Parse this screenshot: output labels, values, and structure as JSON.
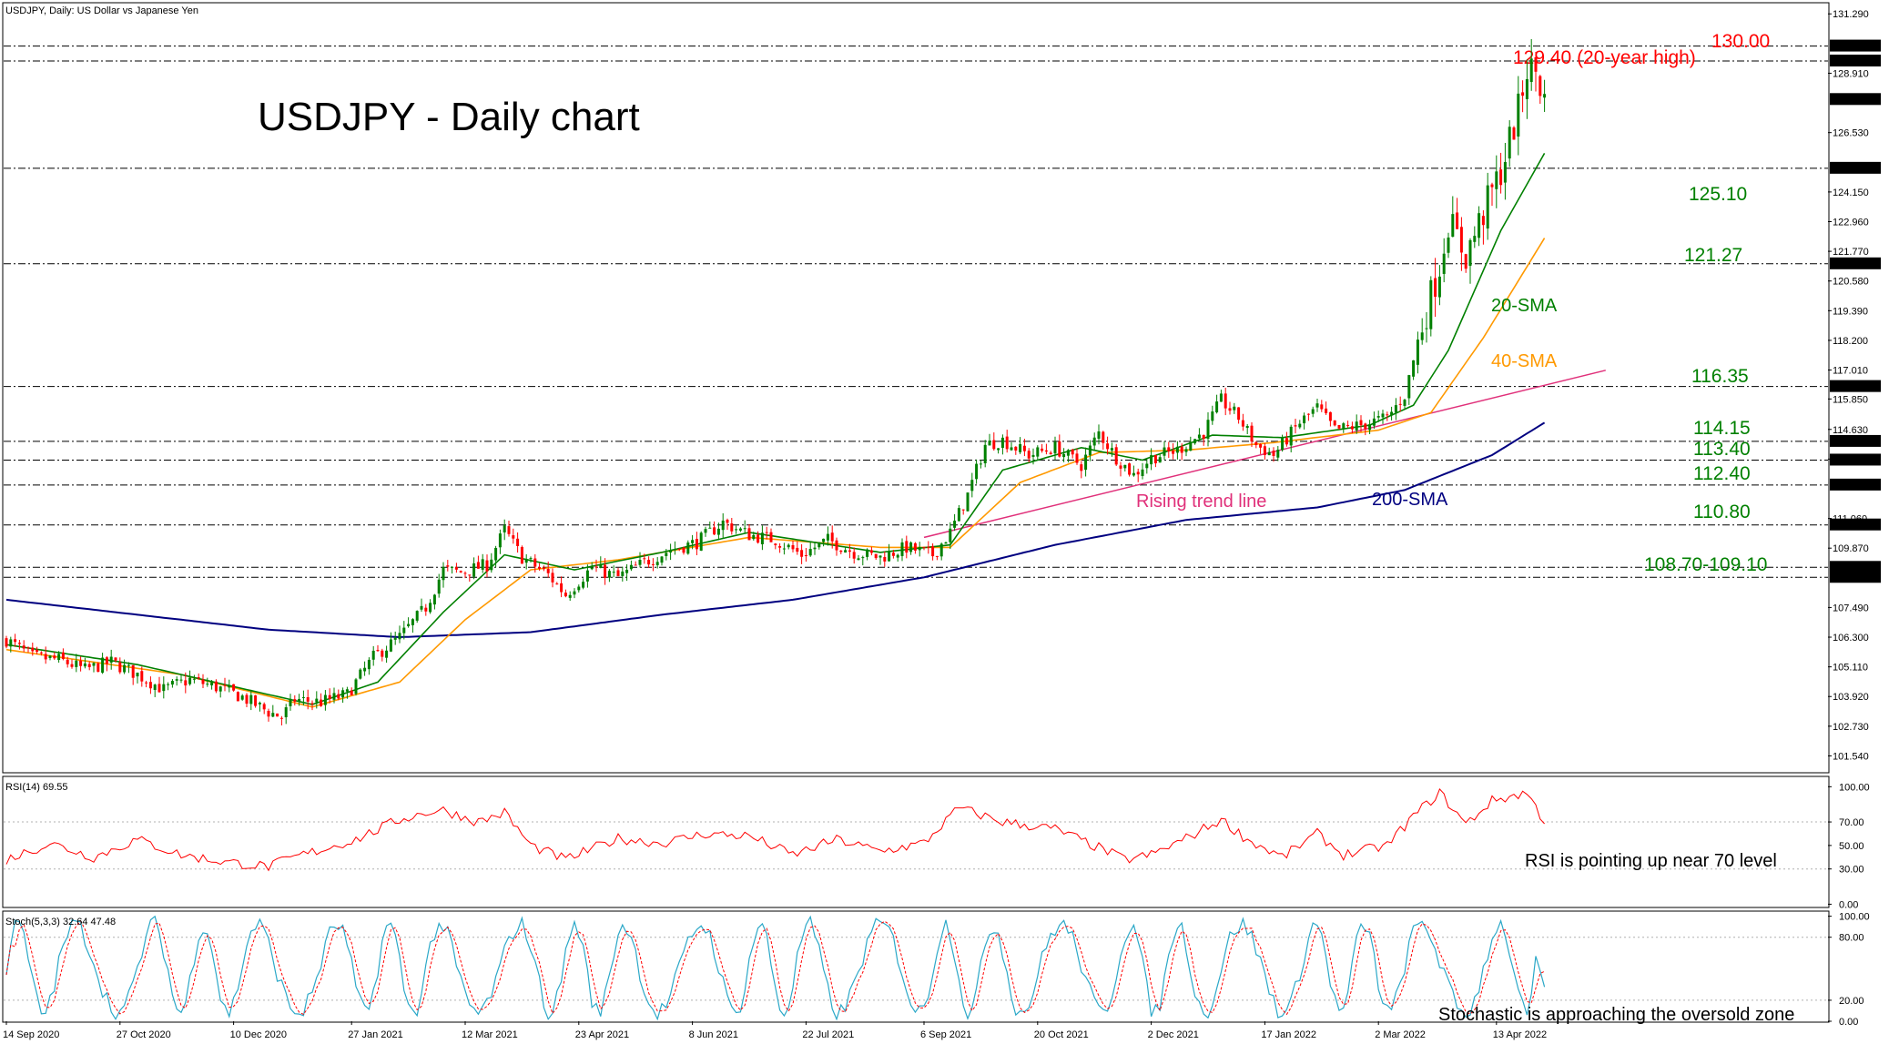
{
  "header": {
    "symbol_info": "USDJPY, Daily:  US Dollar vs Japanese Yen",
    "title": "USDJPY - Daily chart"
  },
  "colors": {
    "bull": "#008000",
    "bear": "#ff0000",
    "sma20": "#008000",
    "sma40": "#ff9900",
    "sma200": "#000080",
    "trend": "#e0307a",
    "rsi": "#ff0000",
    "stoch_main": "#2ba8c8",
    "stoch_signal": "#ff0000",
    "level_green": "#008000",
    "level_red": "#ff0000"
  },
  "chart_data": [
    {
      "type": "candlestick",
      "panel": "price",
      "ylim": [
        100.9,
        131.7
      ],
      "x_tick_labels": [
        "14 Sep 2020",
        "27 Oct 2020",
        "10 Dec 2020",
        "27 Jan 2021",
        "12 Mar 2021",
        "23 Apr 2021",
        "8 Jun 2021",
        "22 Jul 2021",
        "6 Sep 2021",
        "20 Oct 2021",
        "2 Dec 2021",
        "17 Jan 2022",
        "2 Mar 2022",
        "13 Apr 2022"
      ],
      "y_tick_labels": [
        "131.290",
        "128.910",
        "126.530",
        "124.150",
        "122.960",
        "121.770",
        "120.580",
        "119.390",
        "118.200",
        "117.010",
        "115.850",
        "114.630",
        "113.440",
        "111.060",
        "109.870",
        "107.490",
        "106.300",
        "105.110",
        "103.920",
        "102.730",
        "101.540"
      ],
      "key_levels": [
        {
          "value": 130.0,
          "label": "130.00",
          "box": "130.000",
          "color": "red"
        },
        {
          "value": 129.4,
          "label": "129.40 (20-year high)",
          "box": "129.400",
          "color": "red"
        },
        {
          "value": 125.1,
          "label": "125.10",
          "box": "125.100",
          "color": "green"
        },
        {
          "value": 121.27,
          "label": "121.27",
          "box": "121.270",
          "color": "green"
        },
        {
          "value": 116.35,
          "label": "116.35",
          "box": "116.350",
          "color": "green"
        },
        {
          "value": 114.15,
          "label": "114.15",
          "box": "114.150",
          "color": "green"
        },
        {
          "value": 113.4,
          "label": "113.40",
          "box": "113.400",
          "color": "green"
        },
        {
          "value": 112.4,
          "label": "112.40",
          "box": "112.400",
          "color": "green"
        },
        {
          "value": 110.8,
          "label": "110.80",
          "box": "110.800",
          "color": "green"
        },
        {
          "value": 109.1,
          "label": "108.70-109.10",
          "box": "109.100",
          "color": "green"
        },
        {
          "value": 108.7,
          "label": "",
          "box": "108.700",
          "color": "green"
        }
      ],
      "current_price": {
        "value": 127.857,
        "box": "127.857"
      },
      "anchors": [
        [
          0,
          106.2
        ],
        [
          6,
          105.5
        ],
        [
          12,
          105.4
        ],
        [
          18,
          105.0
        ],
        [
          24,
          105.3
        ],
        [
          30,
          104.8
        ],
        [
          36,
          104.2
        ],
        [
          42,
          104.6
        ],
        [
          48,
          104.3
        ],
        [
          54,
          103.9
        ],
        [
          60,
          103.3
        ],
        [
          63,
          103.1
        ],
        [
          66,
          103.8
        ],
        [
          72,
          103.7
        ],
        [
          78,
          104.0
        ],
        [
          84,
          105.5
        ],
        [
          90,
          106.3
        ],
        [
          96,
          107.5
        ],
        [
          100,
          109.0
        ],
        [
          104,
          108.9
        ],
        [
          110,
          109.2
        ],
        [
          114,
          110.6
        ],
        [
          118,
          109.5
        ],
        [
          124,
          108.8
        ],
        [
          128,
          108.0
        ],
        [
          134,
          109.1
        ],
        [
          140,
          108.7
        ],
        [
          146,
          109.3
        ],
        [
          152,
          109.8
        ],
        [
          158,
          110.1
        ],
        [
          164,
          110.9
        ],
        [
          170,
          110.4
        ],
        [
          176,
          110.2
        ],
        [
          182,
          109.6
        ],
        [
          188,
          110.2
        ],
        [
          194,
          109.7
        ],
        [
          200,
          109.5
        ],
        [
          206,
          109.9
        ],
        [
          212,
          109.6
        ],
        [
          216,
          110.5
        ],
        [
          220,
          112.0
        ],
        [
          224,
          114.0
        ],
        [
          228,
          114.2
        ],
        [
          234,
          113.6
        ],
        [
          240,
          113.9
        ],
        [
          246,
          113.2
        ],
        [
          250,
          114.5
        ],
        [
          254,
          113.5
        ],
        [
          258,
          112.8
        ],
        [
          262,
          113.5
        ],
        [
          268,
          113.8
        ],
        [
          274,
          114.5
        ],
        [
          278,
          115.8
        ],
        [
          282,
          115.1
        ],
        [
          286,
          114.0
        ],
        [
          290,
          113.6
        ],
        [
          296,
          114.9
        ],
        [
          300,
          115.5
        ],
        [
          304,
          114.6
        ],
        [
          310,
          114.8
        ],
        [
          316,
          115.1
        ],
        [
          320,
          116.0
        ],
        [
          324,
          118.8
        ],
        [
          328,
          121.2
        ],
        [
          330,
          123.0
        ],
        [
          334,
          121.6
        ],
        [
          338,
          123.3
        ],
        [
          342,
          125.0
        ],
        [
          346,
          127.4
        ],
        [
          348,
          129.1
        ],
        [
          350,
          129.0
        ],
        [
          352,
          127.8
        ]
      ],
      "sma20_anchors": [
        [
          0,
          106.0
        ],
        [
          30,
          105.2
        ],
        [
          60,
          104.0
        ],
        [
          70,
          103.6
        ],
        [
          85,
          104.5
        ],
        [
          100,
          107.3
        ],
        [
          114,
          109.6
        ],
        [
          130,
          109.0
        ],
        [
          150,
          109.7
        ],
        [
          170,
          110.5
        ],
        [
          200,
          109.7
        ],
        [
          216,
          110.0
        ],
        [
          228,
          113.0
        ],
        [
          246,
          113.9
        ],
        [
          260,
          113.4
        ],
        [
          276,
          114.4
        ],
        [
          292,
          114.3
        ],
        [
          312,
          114.8
        ],
        [
          322,
          115.6
        ],
        [
          330,
          117.8
        ],
        [
          342,
          122.6
        ],
        [
          352,
          125.7
        ]
      ],
      "sma40_anchors": [
        [
          0,
          105.8
        ],
        [
          40,
          104.8
        ],
        [
          70,
          103.5
        ],
        [
          90,
          104.5
        ],
        [
          105,
          107.0
        ],
        [
          120,
          109.0
        ],
        [
          140,
          109.4
        ],
        [
          170,
          110.3
        ],
        [
          200,
          109.9
        ],
        [
          216,
          109.9
        ],
        [
          232,
          112.5
        ],
        [
          250,
          113.7
        ],
        [
          270,
          113.8
        ],
        [
          290,
          114.1
        ],
        [
          314,
          114.6
        ],
        [
          326,
          115.3
        ],
        [
          338,
          118.3
        ],
        [
          352,
          122.3
        ]
      ],
      "sma200_anchors": [
        [
          0,
          107.8
        ],
        [
          30,
          107.2
        ],
        [
          60,
          106.6
        ],
        [
          90,
          106.3
        ],
        [
          120,
          106.5
        ],
        [
          150,
          107.2
        ],
        [
          180,
          107.8
        ],
        [
          210,
          108.7
        ],
        [
          240,
          110.0
        ],
        [
          270,
          111.0
        ],
        [
          300,
          111.5
        ],
        [
          320,
          112.2
        ],
        [
          340,
          113.6
        ],
        [
          352,
          114.9
        ]
      ],
      "trend_line": [
        [
          210,
          110.3
        ],
        [
          366,
          117.0
        ]
      ],
      "labels": {
        "sma20": "20-SMA",
        "sma40": "40-SMA",
        "sma200": "200-SMA",
        "trend": "Rising trend line"
      }
    },
    {
      "type": "line",
      "panel": "rsi",
      "name": "RSI(14) 69.55",
      "ylim": [
        -2,
        108
      ],
      "y_tick_labels": [
        "100.00",
        "70.00",
        "50.00",
        "30.00",
        "0.00"
      ],
      "levels": [
        70,
        30
      ],
      "anchors": [
        [
          0,
          38
        ],
        [
          10,
          52
        ],
        [
          20,
          40
        ],
        [
          30,
          55
        ],
        [
          40,
          42
        ],
        [
          50,
          36
        ],
        [
          60,
          32
        ],
        [
          66,
          40
        ],
        [
          80,
          55
        ],
        [
          90,
          72
        ],
        [
          96,
          78
        ],
        [
          100,
          80
        ],
        [
          108,
          70
        ],
        [
          114,
          78
        ],
        [
          120,
          50
        ],
        [
          128,
          38
        ],
        [
          140,
          56
        ],
        [
          150,
          52
        ],
        [
          160,
          60
        ],
        [
          170,
          58
        ],
        [
          180,
          42
        ],
        [
          190,
          55
        ],
        [
          200,
          45
        ],
        [
          210,
          52
        ],
        [
          218,
          82
        ],
        [
          228,
          70
        ],
        [
          240,
          64
        ],
        [
          250,
          48
        ],
        [
          256,
          38
        ],
        [
          262,
          42
        ],
        [
          270,
          56
        ],
        [
          278,
          72
        ],
        [
          284,
          55
        ],
        [
          292,
          40
        ],
        [
          300,
          60
        ],
        [
          306,
          42
        ],
        [
          316,
          50
        ],
        [
          322,
          75
        ],
        [
          328,
          95
        ],
        [
          334,
          68
        ],
        [
          340,
          88
        ],
        [
          348,
          95
        ],
        [
          352,
          70
        ]
      ],
      "annotation": "RSI is pointing up near 70 level"
    },
    {
      "type": "line",
      "panel": "stochastic",
      "name": "Stoch(5,3,3) 32.64 47.48",
      "ylim": [
        0,
        104
      ],
      "y_tick_labels": [
        "100.00",
        "80.00",
        "20.00",
        "0.00"
      ],
      "levels": [
        80,
        20
      ],
      "period": 14,
      "annotation": "Stochastic is approaching the oversold zone"
    }
  ],
  "annotations": {
    "rsi_note": "RSI is pointing up near 70 level",
    "stoch_note": "Stochastic is approaching the oversold zone"
  }
}
